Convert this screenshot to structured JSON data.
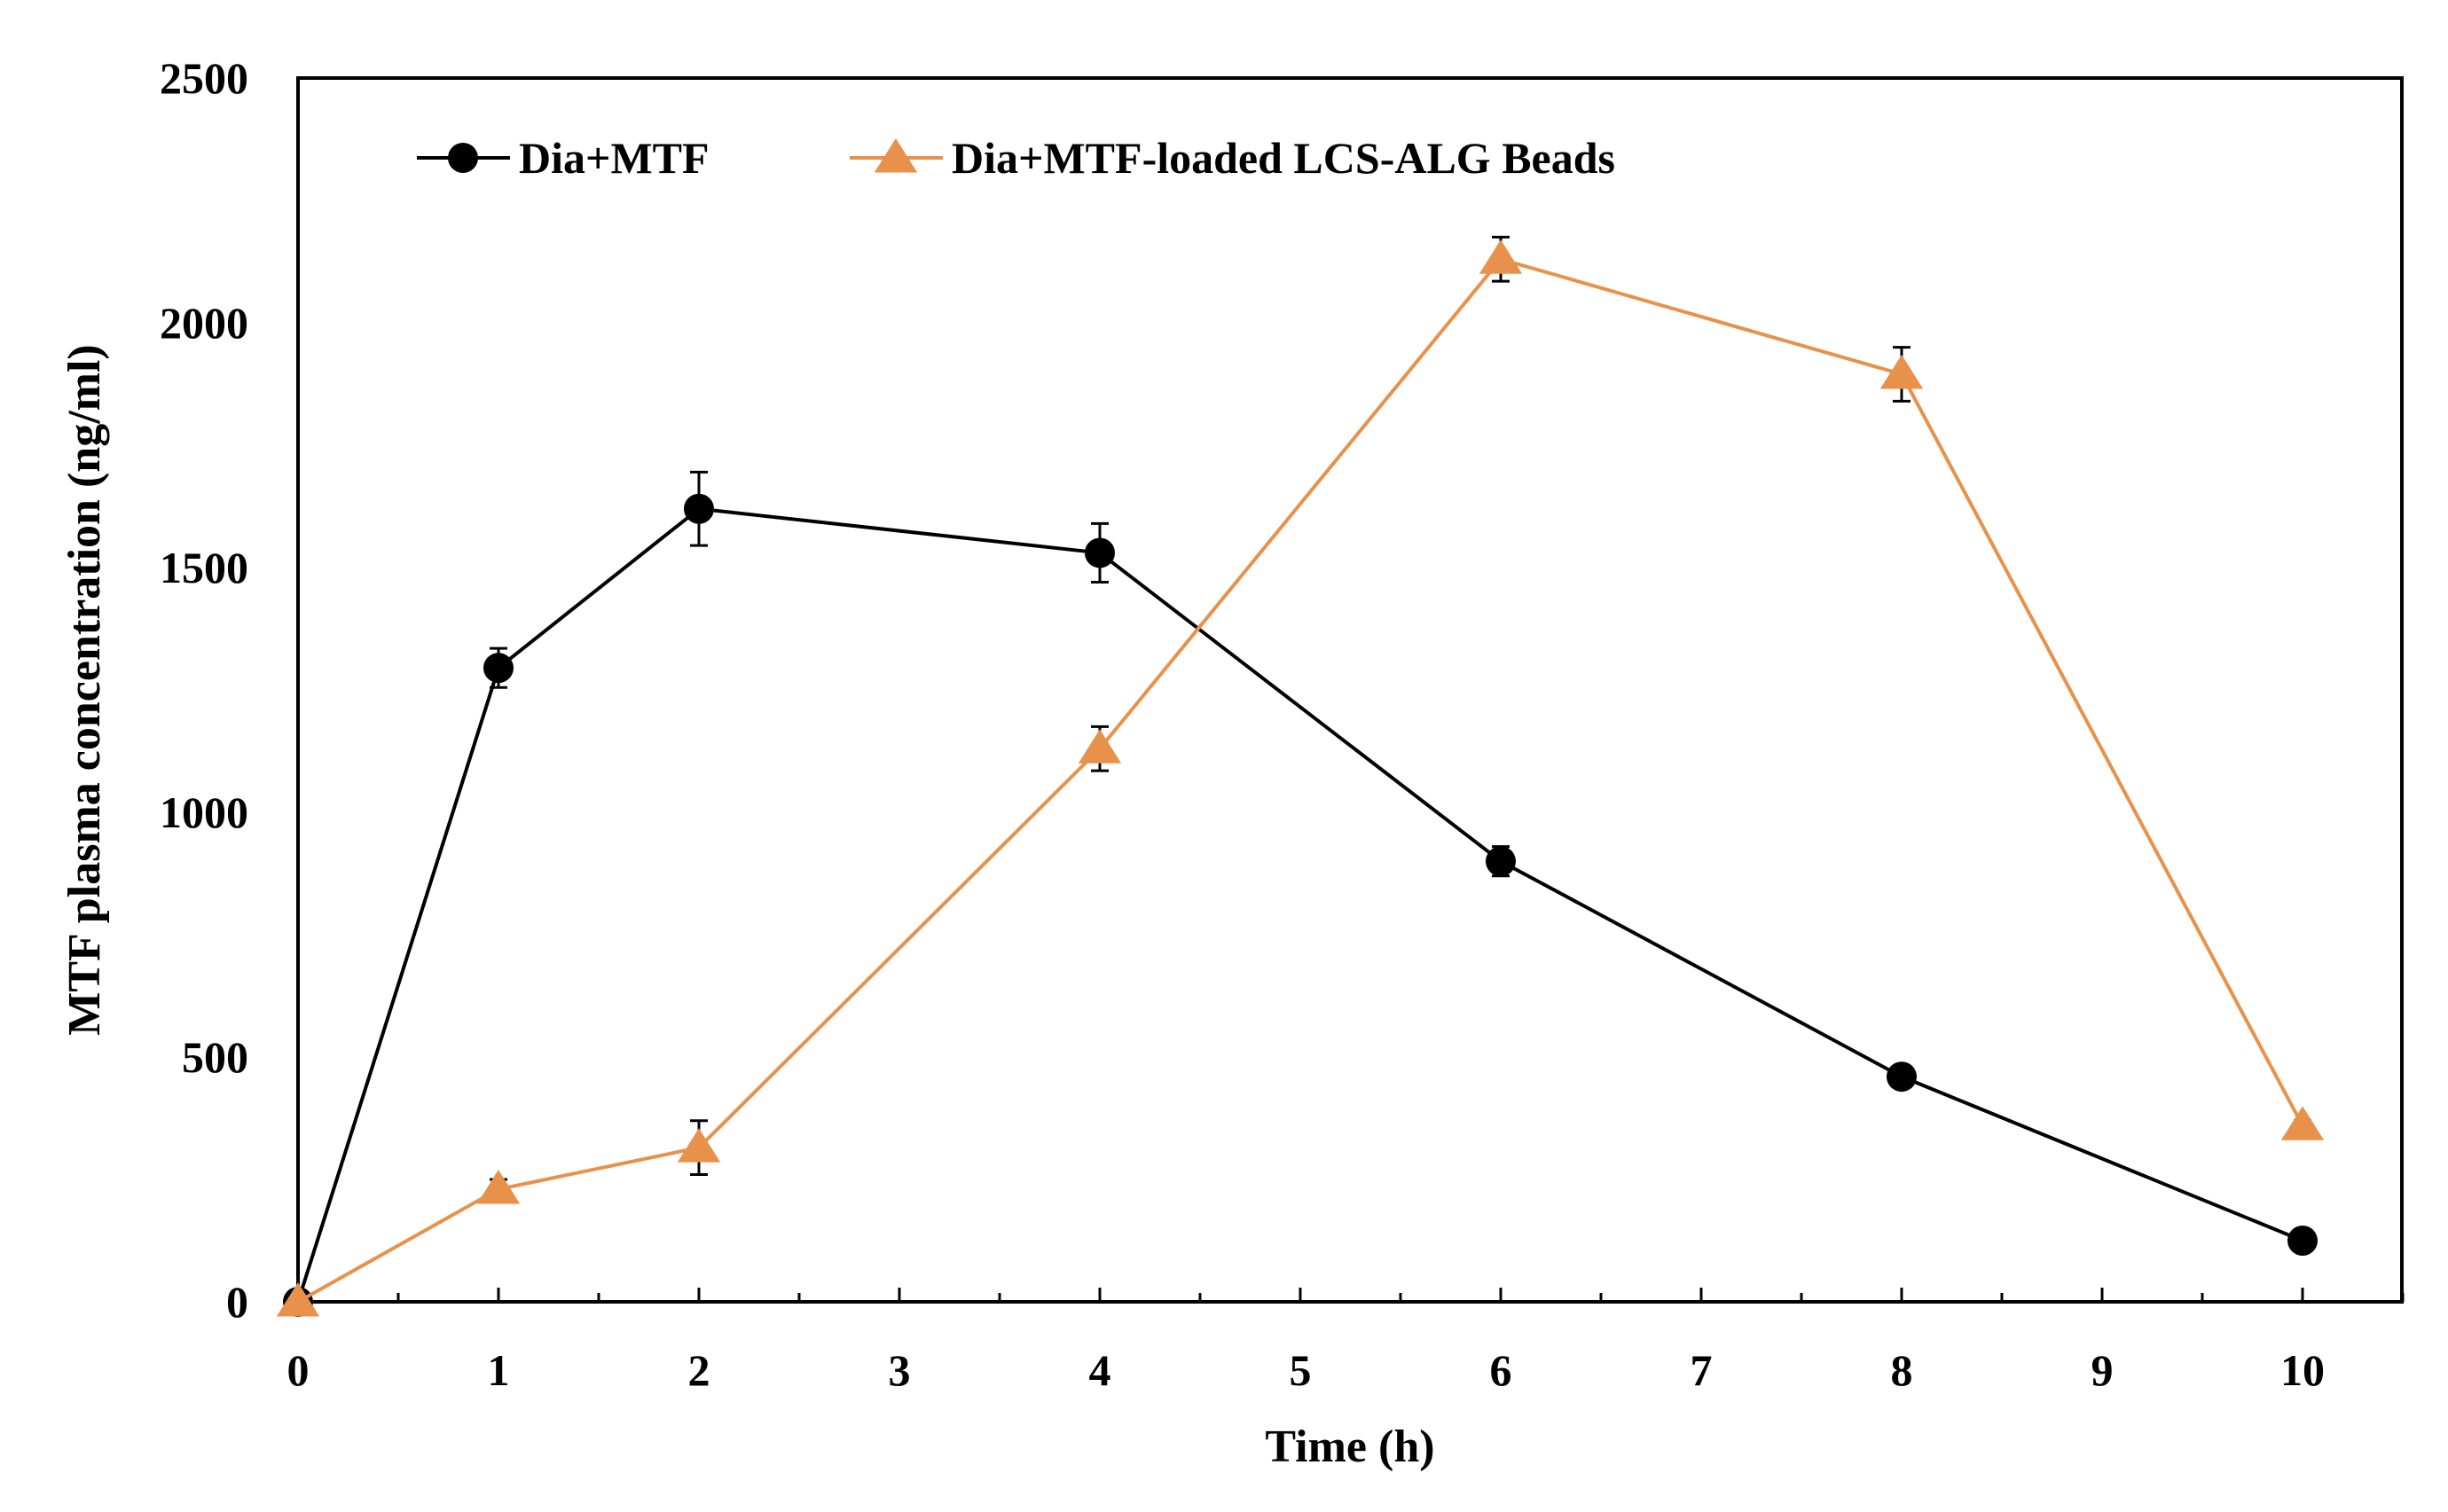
{
  "chart_data": {
    "type": "line",
    "title": "",
    "xlabel": "Time (h)",
    "ylabel": "MTF plasma concentration (ng/ml)",
    "xlim": [
      0,
      10.5
    ],
    "ylim": [
      0,
      2500
    ],
    "xticks": [
      0,
      1,
      2,
      3,
      4,
      5,
      6,
      7,
      8,
      9,
      10
    ],
    "xtick_labels": [
      "0",
      "1",
      "2",
      "3",
      "4",
      "5",
      "6",
      "7",
      "8",
      "9",
      "10"
    ],
    "yticks": [
      0,
      500,
      1000,
      1500,
      2000,
      2500
    ],
    "ytick_labels": [
      "0",
      "500",
      "1000",
      "1500",
      "2000",
      "2500"
    ],
    "grid": false,
    "legend_position": "top-left",
    "series": [
      {
        "name": "Dia+MTF",
        "color": "#000000",
        "marker": "circle",
        "x": [
          0,
          1,
          2,
          4,
          6,
          8,
          10
        ],
        "values": [
          0,
          1295,
          1620,
          1530,
          900,
          460,
          125
        ],
        "errors": [
          0,
          40,
          75,
          60,
          30,
          15,
          10
        ]
      },
      {
        "name": "Dia+MTF-loaded LCS-ALG Beads",
        "color": "#E8914A",
        "marker": "triangle",
        "x": [
          0,
          1,
          2,
          4,
          6,
          8,
          10
        ],
        "values": [
          0,
          230,
          315,
          1130,
          2130,
          1895,
          360
        ],
        "errors": [
          0,
          20,
          55,
          45,
          45,
          55,
          10
        ]
      }
    ]
  }
}
